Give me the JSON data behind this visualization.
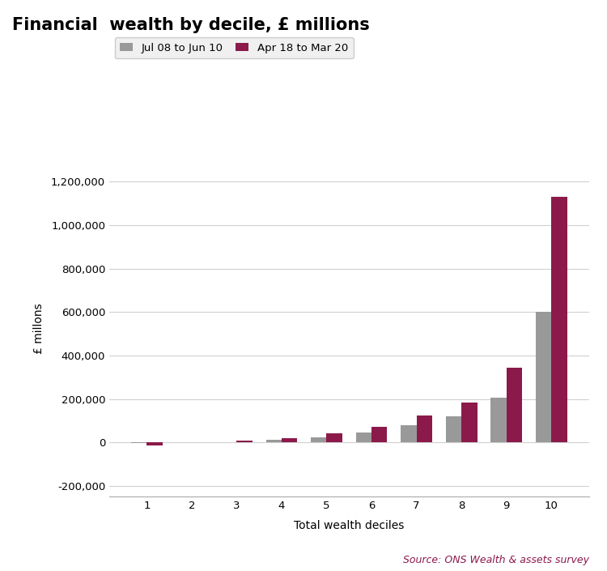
{
  "title": "Financial  wealth by decile, £ millions",
  "xlabel": "Total wealth deciles",
  "ylabel": "£ millons",
  "categories": [
    1,
    2,
    3,
    4,
    5,
    6,
    7,
    8,
    9,
    10
  ],
  "series1_label": "Jul 08 to Jun 10",
  "series2_label": "Apr 18 to Mar 20",
  "series1_values": [
    -2000,
    0,
    2000,
    12000,
    25000,
    47000,
    80000,
    120000,
    205000,
    600000
  ],
  "series2_values": [
    -15000,
    0,
    10000,
    20000,
    42000,
    70000,
    125000,
    185000,
    345000,
    1130000
  ],
  "series1_color": "#999999",
  "series2_color": "#8b1a4a",
  "ylim": [
    -250000,
    1300000
  ],
  "yticks": [
    -200000,
    0,
    200000,
    400000,
    600000,
    800000,
    1000000,
    1200000
  ],
  "background_color": "#ffffff",
  "grid_color": "#d0d0d0",
  "source_text": "Source: ONS Wealth & assets survey",
  "source_color": "#8b1a4a",
  "title_fontsize": 15,
  "label_fontsize": 10,
  "tick_fontsize": 9.5,
  "legend_fontsize": 9.5
}
